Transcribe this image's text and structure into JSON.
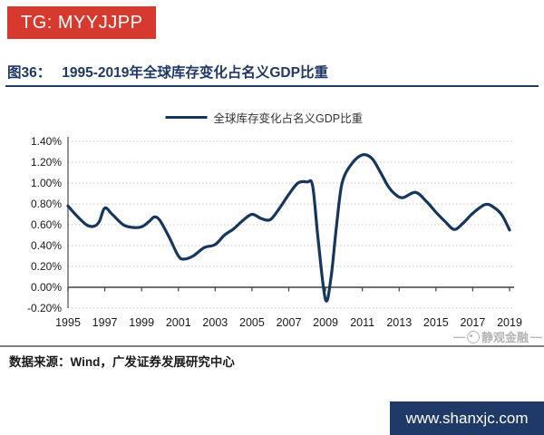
{
  "badge": {
    "label": "TG: MYYJJPP",
    "bg_color": "#d6392e"
  },
  "figure": {
    "number": "图36：",
    "title": "1995-2019年全球库存变化占名义GDP比重",
    "accent_color": "#1f3864"
  },
  "legend": {
    "label": "全球库存变化占名义GDP比重"
  },
  "chart_data": {
    "type": "line",
    "title": "1995-2019年全球库存变化占名义GDP比重",
    "xlabel": "",
    "ylabel": "",
    "ylim": [
      -0.2,
      1.4
    ],
    "xlim": [
      1995,
      2019
    ],
    "y_ticks": [
      1.4,
      1.2,
      1.0,
      0.8,
      0.6,
      0.4,
      0.2,
      0.0,
      -0.2
    ],
    "y_tick_format": "percent-2dp",
    "x_ticks": [
      1995,
      1997,
      1999,
      2001,
      2003,
      2005,
      2007,
      2009,
      2011,
      2013,
      2015,
      2017,
      2019
    ],
    "grid": "horizontal-dotted",
    "legend_position": "top-center",
    "series": [
      {
        "name": "全球库存变化占名义GDP比重",
        "color": "#16365c",
        "unit": "% of nominal GDP",
        "x": [
          1995.0,
          1995.4,
          1996.0,
          1996.4,
          1996.7,
          1997.0,
          1997.4,
          1998.0,
          1998.5,
          1999.0,
          1999.4,
          1999.7,
          2000.0,
          2000.5,
          2001.0,
          2001.3,
          2001.8,
          2002.4,
          2003.0,
          2003.5,
          2004.0,
          2004.5,
          2005.0,
          2005.5,
          2006.0,
          2006.5,
          2007.0,
          2007.5,
          2008.0,
          2008.3,
          2008.6,
          2009.0,
          2009.3,
          2009.6,
          2009.9,
          2010.4,
          2011.0,
          2011.5,
          2011.9,
          2012.4,
          2012.8,
          2013.2,
          2013.9,
          2014.5,
          2015.0,
          2015.5,
          2016.0,
          2016.5,
          2017.0,
          2017.7,
          2018.2,
          2018.6,
          2019.0
        ],
        "y": [
          0.78,
          0.7,
          0.6,
          0.585,
          0.63,
          0.76,
          0.7,
          0.6,
          0.575,
          0.58,
          0.63,
          0.675,
          0.64,
          0.48,
          0.3,
          0.27,
          0.3,
          0.38,
          0.41,
          0.5,
          0.56,
          0.64,
          0.7,
          0.66,
          0.65,
          0.76,
          0.89,
          1.0,
          1.01,
          0.97,
          0.45,
          -0.12,
          0.1,
          0.6,
          1.0,
          1.18,
          1.27,
          1.24,
          1.13,
          0.97,
          0.89,
          0.86,
          0.91,
          0.82,
          0.72,
          0.63,
          0.555,
          0.62,
          0.71,
          0.795,
          0.76,
          0.69,
          0.55
        ]
      }
    ],
    "annotations": {
      "trough_2009": -0.12,
      "peak_2011": 1.27,
      "peak_2008": 1.01,
      "end_2019": 0.55
    }
  },
  "watermark": {
    "dash": "—",
    "label": "静观金融"
  },
  "footer": {
    "source_label": "数据来源：Wind，广发证券发展研究中心"
  },
  "site_box": {
    "label": "www.shanxjc.com",
    "bg_color": "#1f3a66"
  }
}
